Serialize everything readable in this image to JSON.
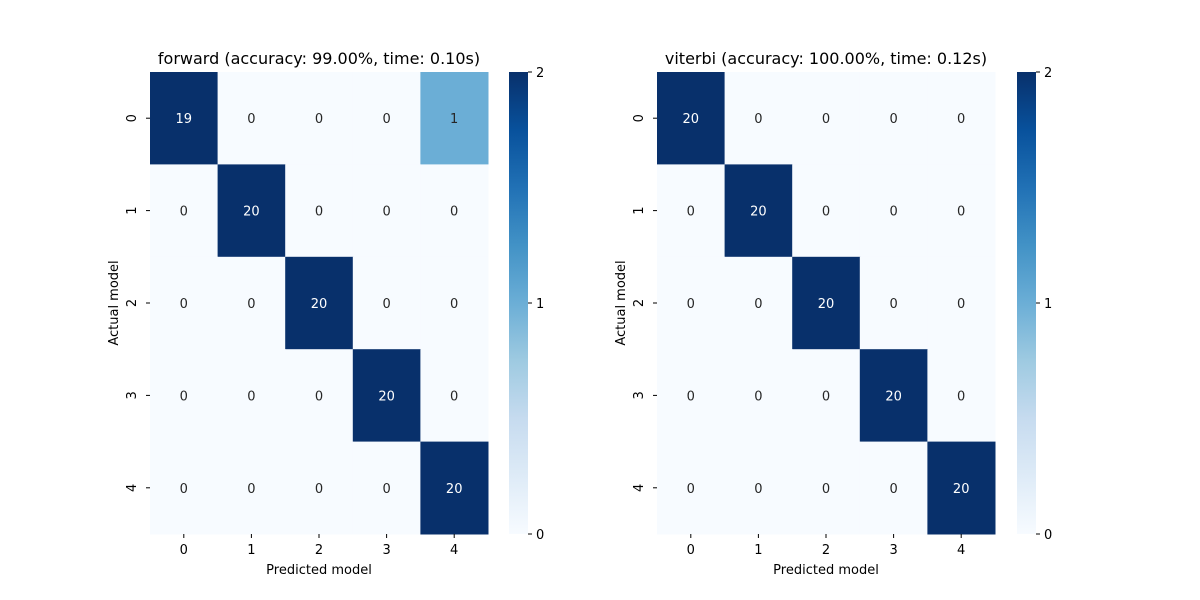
{
  "chart_data": [
    {
      "type": "heatmap",
      "title": "forward (accuracy: 99.00%, time: 0.10s)",
      "xlabel": "Predicted model",
      "ylabel": "Actual model",
      "x_ticks": [
        "0",
        "1",
        "2",
        "3",
        "4"
      ],
      "y_ticks": [
        "0",
        "1",
        "2",
        "3",
        "4"
      ],
      "matrix": [
        [
          19,
          0,
          0,
          0,
          1
        ],
        [
          0,
          20,
          0,
          0,
          0
        ],
        [
          0,
          0,
          20,
          0,
          0
        ],
        [
          0,
          0,
          0,
          20,
          0
        ],
        [
          0,
          0,
          0,
          0,
          20
        ]
      ],
      "colorbar": {
        "vmin": 0,
        "vmax": 2,
        "ticks": [
          "0",
          "1",
          "2"
        ],
        "colormap": "Blues"
      }
    },
    {
      "type": "heatmap",
      "title": "viterbi (accuracy: 100.00%, time: 0.12s)",
      "xlabel": "Predicted model",
      "ylabel": "Actual model",
      "x_ticks": [
        "0",
        "1",
        "2",
        "3",
        "4"
      ],
      "y_ticks": [
        "0",
        "1",
        "2",
        "3",
        "4"
      ],
      "matrix": [
        [
          20,
          0,
          0,
          0,
          0
        ],
        [
          0,
          20,
          0,
          0,
          0
        ],
        [
          0,
          0,
          20,
          0,
          0
        ],
        [
          0,
          0,
          0,
          20,
          0
        ],
        [
          0,
          0,
          0,
          0,
          20
        ]
      ],
      "colorbar": {
        "vmin": 0,
        "vmax": 2,
        "ticks": [
          "0",
          "1",
          "2"
        ],
        "colormap": "Blues"
      }
    }
  ]
}
